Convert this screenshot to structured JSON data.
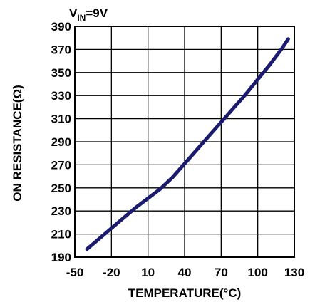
{
  "chart_data": {
    "type": "line",
    "annotation": {
      "main": "V",
      "subscript": "IN",
      "suffix": "=9V"
    },
    "xlabel": "TEMPERATURE(°C)",
    "ylabel": "ON RESISTANCE(Ω)",
    "xlim": [
      -50,
      130
    ],
    "ylim": [
      190,
      390
    ],
    "xticks": [
      -50,
      -20,
      10,
      40,
      70,
      100,
      130
    ],
    "yticks": [
      190,
      210,
      230,
      250,
      270,
      290,
      310,
      330,
      350,
      370,
      390
    ],
    "grid": true,
    "line_color": "#1a1a6e",
    "series": [
      {
        "x": [
          -40,
          -30,
          -20,
          -10,
          0,
          10,
          20,
          30,
          40,
          50,
          60,
          70,
          80,
          90,
          100,
          110,
          120,
          125
        ],
        "y": [
          197,
          206,
          215,
          224,
          233,
          241,
          249,
          259,
          271,
          283,
          295,
          307,
          319,
          331,
          344,
          357,
          371,
          379
        ]
      }
    ]
  }
}
